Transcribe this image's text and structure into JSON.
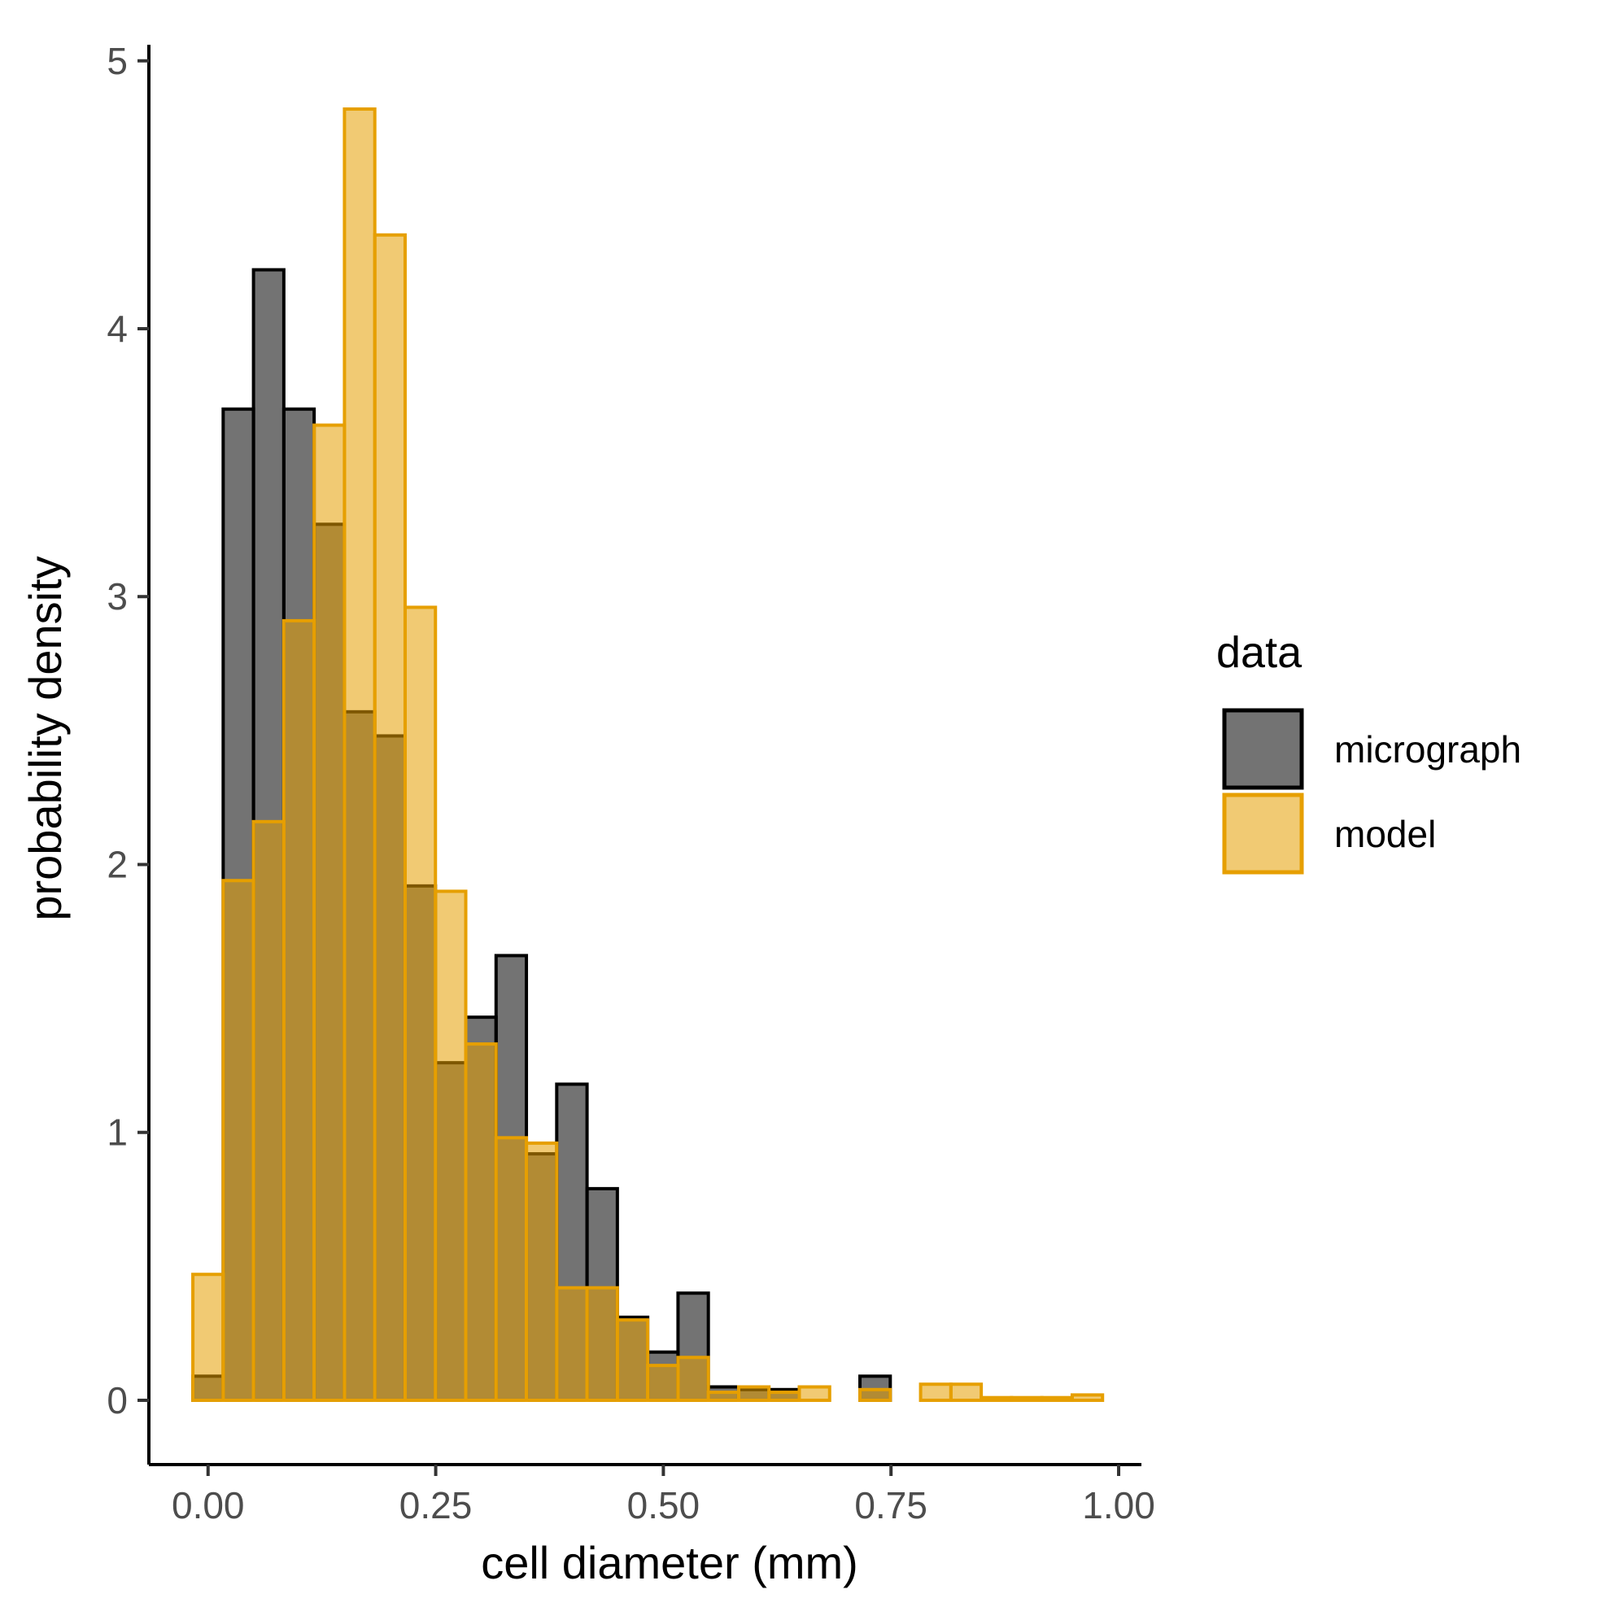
{
  "chart_data": {
    "type": "histogram",
    "xlabel": "cell diameter (mm)",
    "ylabel": "probability density",
    "xlim": [
      -0.065,
      1.025
    ],
    "ylim": [
      -0.24,
      5.06
    ],
    "x_ticks": [
      0.0,
      0.25,
      0.5,
      0.75,
      1.0
    ],
    "x_tick_labels": [
      "0.00",
      "0.25",
      "0.50",
      "0.75",
      "1.00"
    ],
    "y_ticks": [
      0,
      1,
      2,
      3,
      4,
      5
    ],
    "y_tick_labels": [
      "0",
      "1",
      "2",
      "3",
      "4",
      "5"
    ],
    "bin_width": 0.0333,
    "bin_start": -0.0167,
    "legend": {
      "title": "data",
      "entries": [
        "micrograph",
        "model"
      ],
      "position": "right"
    },
    "series": [
      {
        "name": "micrograph",
        "fill": "#000000",
        "fill_opacity": 0.55,
        "stroke": "#000000",
        "values": [
          0.09,
          3.7,
          4.22,
          3.7,
          3.27,
          2.57,
          2.48,
          1.92,
          1.26,
          1.43,
          1.66,
          0.92,
          1.18,
          0.79,
          0.31,
          0.18,
          0.4,
          0.05,
          0.04,
          0.04,
          0.0,
          0.0,
          0.09,
          0.0,
          0.0,
          0.0,
          0.0,
          0.0,
          0.0,
          0.0
        ]
      },
      {
        "name": "model",
        "fill": "#E69F00",
        "fill_opacity": 0.55,
        "stroke": "#E69F00",
        "values": [
          0.47,
          1.94,
          2.16,
          2.91,
          3.64,
          4.82,
          4.35,
          2.96,
          1.9,
          1.33,
          0.98,
          0.96,
          0.42,
          0.42,
          0.3,
          0.13,
          0.16,
          0.03,
          0.05,
          0.03,
          0.05,
          0.0,
          0.04,
          0.0,
          0.06,
          0.06,
          0.01,
          0.01,
          0.01,
          0.02
        ]
      }
    ]
  }
}
